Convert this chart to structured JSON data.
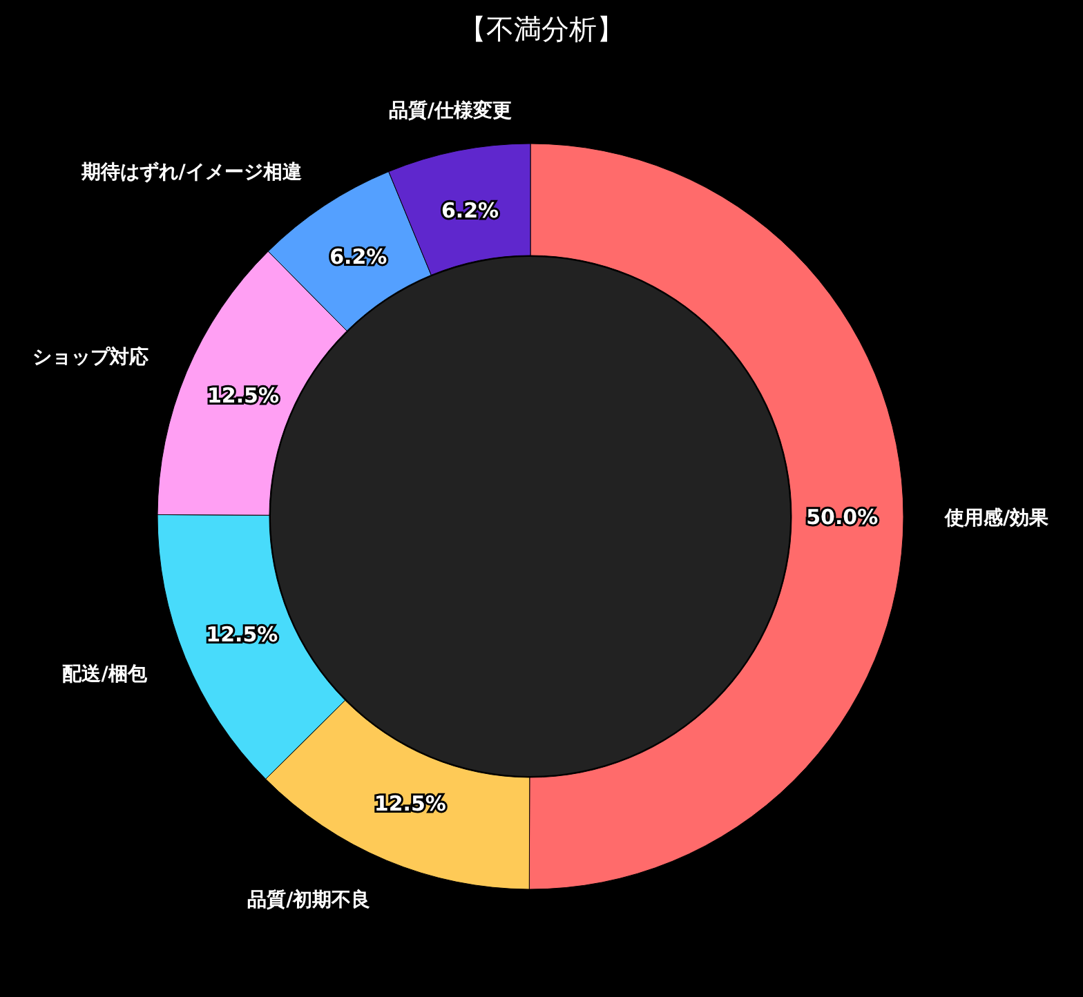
{
  "chart_data": {
    "type": "donut",
    "title": "【不満分析】",
    "categories": [
      "使用感/効果",
      "品質/初期不良",
      "配送/梱包",
      "ショップ対応",
      "期待はずれ/イメージ相違",
      "品質/仕様変更"
    ],
    "values": [
      50.0,
      12.5,
      12.5,
      12.5,
      6.2,
      6.2
    ],
    "colors": [
      "#ff6b6b",
      "#feca57",
      "#48dbfb",
      "#ff9ff3",
      "#54a0ff",
      "#5f27cd"
    ],
    "value_labels": [
      "50.0%",
      "12.5%",
      "12.5%",
      "12.5%",
      "6.2%",
      "6.2%"
    ]
  }
}
